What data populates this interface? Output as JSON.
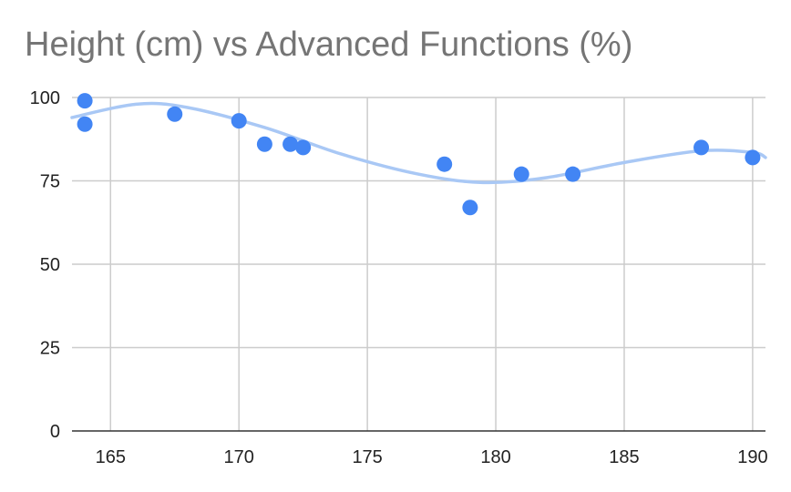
{
  "chart_data": {
    "type": "scatter",
    "title": "Height (cm) vs Advanced Functions (%)",
    "xlabel": "",
    "ylabel": "",
    "xlim": [
      163.5,
      190.5
    ],
    "ylim": [
      0,
      100
    ],
    "x_ticks": [
      165,
      170,
      175,
      180,
      185,
      190
    ],
    "y_ticks": [
      0,
      25,
      50,
      75,
      100
    ],
    "grid": true,
    "legend": "none",
    "point_color": "#4285f4",
    "trendline_color": "#a9c8f5",
    "trendline": "polynomial",
    "series": [
      {
        "points": [
          {
            "x": 164,
            "y": 99
          },
          {
            "x": 164,
            "y": 92
          },
          {
            "x": 167.5,
            "y": 95
          },
          {
            "x": 170,
            "y": 93
          },
          {
            "x": 171,
            "y": 86
          },
          {
            "x": 172,
            "y": 86
          },
          {
            "x": 172.5,
            "y": 85
          },
          {
            "x": 178,
            "y": 80
          },
          {
            "x": 179,
            "y": 67
          },
          {
            "x": 181,
            "y": 77
          },
          {
            "x": 183,
            "y": 77
          },
          {
            "x": 188,
            "y": 85
          },
          {
            "x": 190,
            "y": 82
          }
        ]
      }
    ],
    "trendline_points": [
      {
        "x": 163.5,
        "y": 94
      },
      {
        "x": 166,
        "y": 98
      },
      {
        "x": 168,
        "y": 97
      },
      {
        "x": 171,
        "y": 91
      },
      {
        "x": 174,
        "y": 83
      },
      {
        "x": 177,
        "y": 77
      },
      {
        "x": 179.5,
        "y": 74.5
      },
      {
        "x": 182,
        "y": 76
      },
      {
        "x": 185,
        "y": 80.5
      },
      {
        "x": 188,
        "y": 84
      },
      {
        "x": 190,
        "y": 83.5
      },
      {
        "x": 190.5,
        "y": 82
      }
    ]
  }
}
